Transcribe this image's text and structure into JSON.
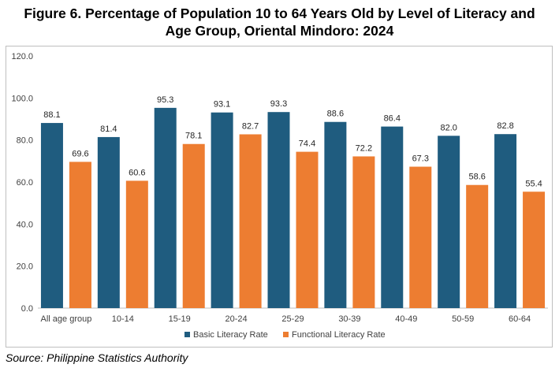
{
  "title_line1": "Figure 6. Percentage of Population 10 to 64 Years Old by Level of Literacy and",
  "title_line2": "Age Group, Oriental Mindoro: 2024",
  "source": "Source: Philippine Statistics Authority",
  "colors": {
    "basic": "#1f5c7f",
    "functional": "#ed7d31",
    "axis": "#bfbfbf"
  },
  "chart_data": {
    "type": "bar",
    "categories": [
      "All age group",
      "10-14",
      "15-19",
      "20-24",
      "25-29",
      "30-39",
      "40-49",
      "50-59",
      "60-64"
    ],
    "series": [
      {
        "name": "Basic Literacy Rate",
        "values": [
          88.1,
          81.4,
          95.3,
          93.1,
          93.3,
          88.6,
          86.4,
          82.0,
          82.8
        ]
      },
      {
        "name": "Functional Literacy Rate",
        "values": [
          69.6,
          60.6,
          78.1,
          82.7,
          74.4,
          72.2,
          67.3,
          58.6,
          55.4
        ]
      }
    ],
    "ylim": [
      0,
      120
    ],
    "yticks": [
      "0.0",
      "20.0",
      "40.0",
      "60.0",
      "80.0",
      "100.0",
      "120.0"
    ],
    "legend": "bottom",
    "grid": false
  }
}
